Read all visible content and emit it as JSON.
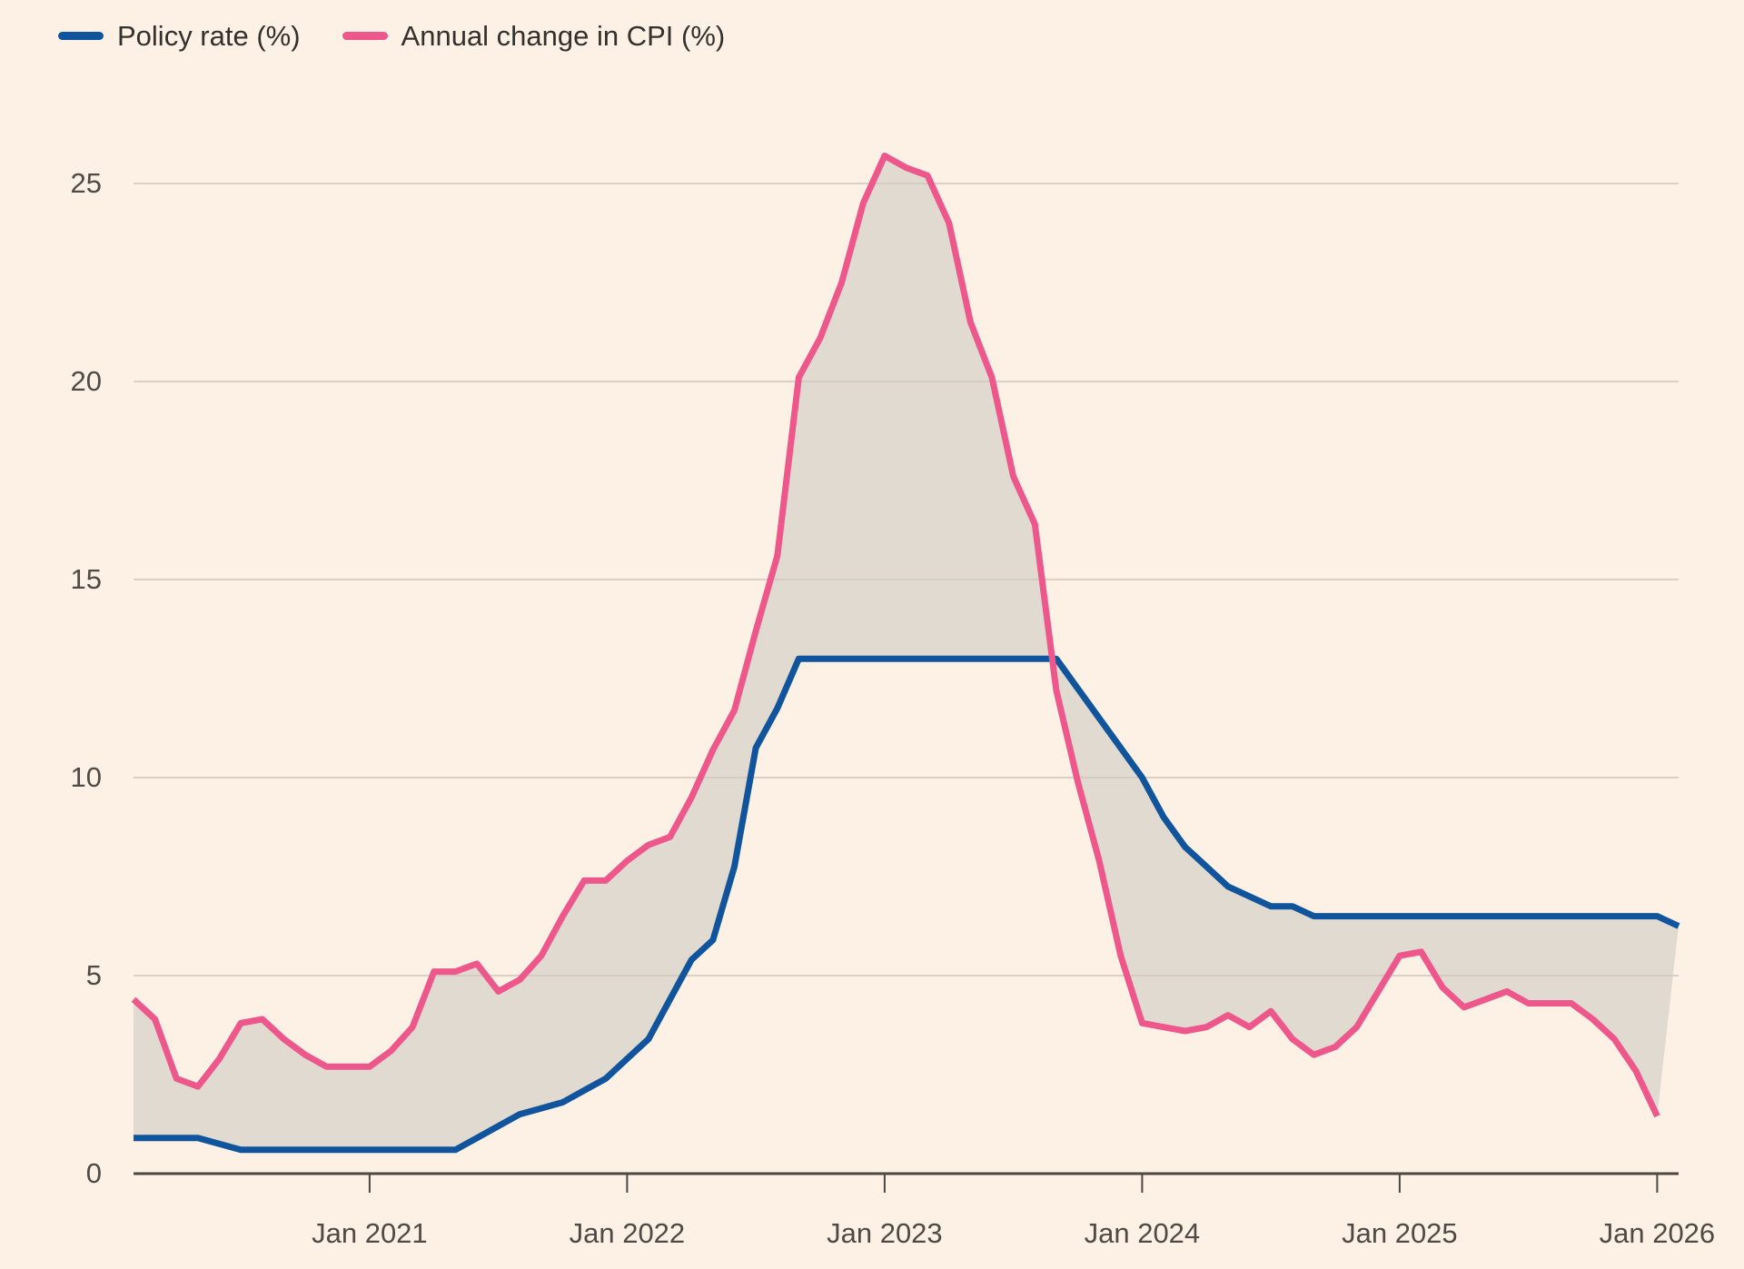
{
  "legend": [
    {
      "label": "Policy rate (%)",
      "color": "#0f549d"
    },
    {
      "label": "Annual change in CPI (%)",
      "color": "#ee578b"
    }
  ],
  "colors": {
    "background": "#fdf1e5",
    "policy_rate_line": "#0f549d",
    "cpi_line": "#ee578b",
    "between_fill": "#e1dad0",
    "gridline": "#cfc5b9",
    "axis": "#4d4742",
    "tick_text": "#4f4a45"
  },
  "chart_data": {
    "type": "line",
    "title": "",
    "xlabel": "",
    "ylabel": "",
    "grid": true,
    "legend_position": "top-left",
    "fill_between_series": true,
    "x": {
      "start_label": "Feb 2020",
      "end_label": "Feb 2026",
      "cadence": "monthly",
      "count": 73
    },
    "x_tick_labels": [
      "Jan 2021",
      "Jan 2022",
      "Jan 2023",
      "Jan 2024",
      "Jan 2025",
      "Jan 2026"
    ],
    "x_tick_indices": [
      11,
      23,
      35,
      47,
      59,
      71
    ],
    "y_ticks": [
      0,
      5,
      10,
      15,
      20,
      25
    ],
    "ylim": [
      0,
      26.5
    ],
    "series": [
      {
        "name": "Policy rate (%)",
        "color": "#0f549d",
        "values": [
          0.9,
          0.9,
          0.9,
          0.9,
          0.75,
          0.6,
          0.6,
          0.6,
          0.6,
          0.6,
          0.6,
          0.6,
          0.6,
          0.6,
          0.6,
          0.6,
          0.9,
          1.2,
          1.5,
          1.65,
          1.8,
          2.1,
          2.4,
          2.9,
          3.4,
          4.4,
          5.4,
          5.9,
          7.75,
          10.75,
          11.75,
          13,
          13,
          13,
          13,
          13,
          13,
          13,
          13,
          13,
          13,
          13,
          13,
          13,
          12.25,
          11.5,
          10.75,
          10,
          9,
          8.25,
          7.75,
          7.25,
          7,
          6.75,
          6.75,
          6.5,
          6.5,
          6.5,
          6.5,
          6.5,
          6.5,
          6.5,
          6.5,
          6.5,
          6.5,
          6.5,
          6.5,
          6.5,
          6.5,
          6.5,
          6.5,
          6.5,
          6.25,
          6.25
        ]
      },
      {
        "name": "Annual change in CPI (%)",
        "color": "#ee578b",
        "values": [
          4.4,
          3.9,
          2.4,
          2.2,
          2.9,
          3.8,
          3.9,
          3.4,
          3.0,
          2.7,
          2.7,
          2.7,
          3.1,
          3.7,
          5.1,
          5.1,
          5.3,
          4.6,
          4.9,
          5.5,
          6.5,
          7.4,
          7.4,
          7.9,
          8.3,
          8.5,
          9.5,
          10.7,
          11.7,
          13.7,
          15.6,
          20.1,
          21.1,
          22.5,
          24.5,
          25.7,
          25.4,
          25.2,
          24.0,
          21.5,
          20.1,
          17.6,
          16.4,
          12.2,
          9.9,
          7.9,
          5.5,
          3.8,
          3.7,
          3.6,
          3.7,
          4.0,
          3.7,
          4.1,
          3.4,
          3.0,
          3.2,
          3.7,
          4.6,
          5.5,
          5.6,
          4.7,
          4.2,
          4.4,
          4.6,
          4.3,
          4.3,
          4.3,
          3.9,
          3.4,
          2.6,
          1.45,
          null
        ]
      }
    ]
  }
}
